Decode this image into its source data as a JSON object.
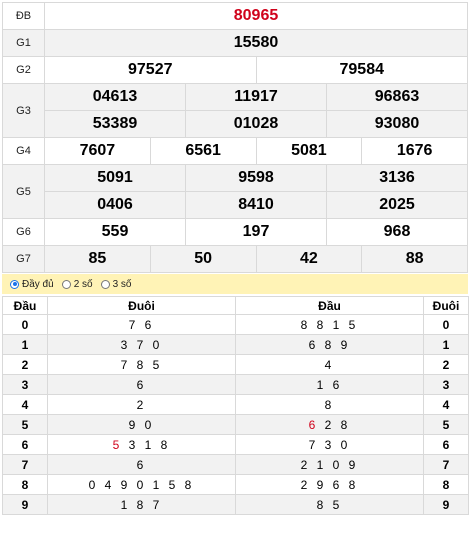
{
  "prizes": {
    "db": {
      "label": "ĐB",
      "value": "80965"
    },
    "g1": {
      "label": "G1",
      "value": "15580"
    },
    "g2": {
      "label": "G2",
      "values": [
        "97527",
        "79584"
      ]
    },
    "g3": {
      "label": "G3",
      "values": [
        "04613",
        "11917",
        "96863",
        "53389",
        "01028",
        "93080"
      ]
    },
    "g4": {
      "label": "G4",
      "values": [
        "7607",
        "6561",
        "5081",
        "1676"
      ]
    },
    "g5": {
      "label": "G5",
      "values": [
        "5091",
        "9598",
        "3136",
        "0406",
        "8410",
        "2025"
      ]
    },
    "g6": {
      "label": "G6",
      "values": [
        "559",
        "197",
        "968"
      ]
    },
    "g7": {
      "label": "G7",
      "values": [
        "85",
        "50",
        "42",
        "88"
      ]
    }
  },
  "options": {
    "full": "Đầy đủ",
    "two": "2 số",
    "three": "3 số"
  },
  "loto": {
    "headers": {
      "dau": "Đầu",
      "duoi": "Đuôi",
      "dau2": "Đầu",
      "duoi2": "Đuôi"
    },
    "rows": [
      {
        "dau": "0",
        "duoi": "7 6",
        "dau_list": "8 8 1 5",
        "duoi_digit": "0"
      },
      {
        "dau": "1",
        "duoi": "3 7 0",
        "dau_list": "6 8 9",
        "duoi_digit": "1"
      },
      {
        "dau": "2",
        "duoi": "7 8 5",
        "dau_list": "4",
        "duoi_digit": "2"
      },
      {
        "dau": "3",
        "duoi": "6",
        "dau_list": "1 6",
        "duoi_digit": "3"
      },
      {
        "dau": "4",
        "duoi": "2",
        "dau_list": "8",
        "duoi_digit": "4"
      },
      {
        "dau": "5",
        "duoi": "9 0",
        "dau_list_hl": "6",
        "dau_list_rest": "2 8",
        "duoi_digit": "5"
      },
      {
        "dau": "6",
        "duoi_hl": "5",
        "duoi_rest": "3 1 8",
        "dau_list": "7 3 0",
        "duoi_digit": "6"
      },
      {
        "dau": "7",
        "duoi": "6",
        "dau_list": "2 1 0 9",
        "duoi_digit": "7"
      },
      {
        "dau": "8",
        "duoi": "0 4 9 0 1 5 8",
        "dau_list": "2 9 6 8",
        "duoi_digit": "8"
      },
      {
        "dau": "9",
        "duoi": "1 8 7",
        "dau_list": "8 5",
        "duoi_digit": "9"
      }
    ]
  },
  "colors": {
    "special": "#d0021b",
    "option_bar": "#fff3b6",
    "radio_on": "#1a73e8"
  }
}
